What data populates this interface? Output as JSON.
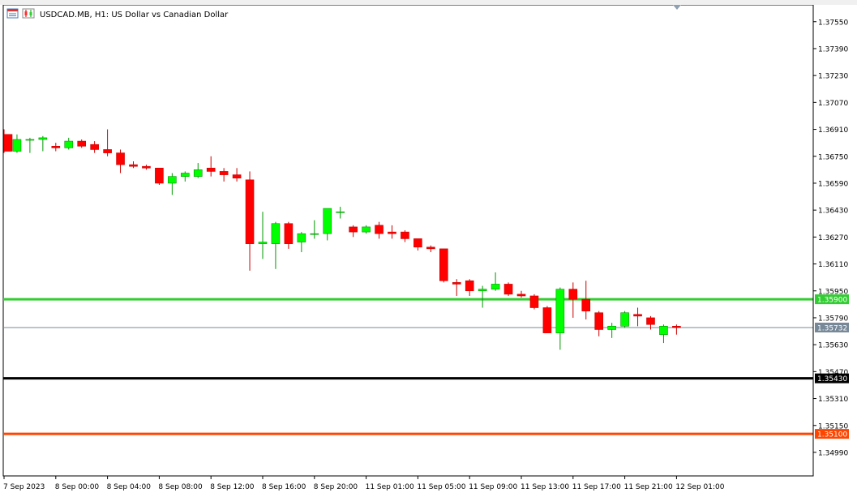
{
  "header": {
    "symbol": "USDCAD.MB",
    "timeframe": "H1",
    "description": "US Dollar vs Canadian Dollar",
    "title_text": "USDCAD.MB, H1:  US Dollar vs Canadian Dollar"
  },
  "colors": {
    "background": "#ffffff",
    "bull_fill": "#00ff00",
    "bear_fill": "#ff0000",
    "bull_wick": "#009900",
    "bear_wick": "#cc0000",
    "axis": "#000000",
    "support_green": "#32cd32",
    "support_black": "#000000",
    "support_orange": "#ff4500",
    "bid_line": "#778899"
  },
  "chart_data": {
    "type": "candlestick",
    "symbol": "USDCAD.MB",
    "timeframe": "H1",
    "ylim": [
      1.3485,
      1.3765
    ],
    "y_ticks": [
      "1.37550",
      "1.37390",
      "1.37230",
      "1.37070",
      "1.36910",
      "1.36750",
      "1.36590",
      "1.36430",
      "1.36270",
      "1.36110",
      "1.35950",
      "1.35790",
      "1.35630",
      "1.35470",
      "1.35310",
      "1.35150",
      "1.34990"
    ],
    "x_ticks": [
      {
        "index": 0,
        "label": "7 Sep 2023"
      },
      {
        "index": 4,
        "label": "8 Sep 00:00"
      },
      {
        "index": 8,
        "label": "8 Sep 04:00"
      },
      {
        "index": 12,
        "label": "8 Sep 08:00"
      },
      {
        "index": 16,
        "label": "8 Sep 12:00"
      },
      {
        "index": 20,
        "label": "8 Sep 16:00"
      },
      {
        "index": 24,
        "label": "8 Sep 20:00"
      },
      {
        "index": 28,
        "label": "11 Sep 01:00"
      },
      {
        "index": 32,
        "label": "11 Sep 05:00"
      },
      {
        "index": 36,
        "label": "11 Sep 09:00"
      },
      {
        "index": 40,
        "label": "11 Sep 13:00"
      },
      {
        "index": 44,
        "label": "11 Sep 17:00"
      },
      {
        "index": 48,
        "label": "11 Sep 21:00"
      },
      {
        "index": 52,
        "label": "12 Sep 01:00"
      }
    ],
    "horizontal_lines": [
      {
        "value": 1.359,
        "label": "1.35900",
        "color": "#32cd32",
        "width": 3
      },
      {
        "value": 1.35732,
        "label": "1.35732",
        "color": "#778899",
        "width": 1
      },
      {
        "value": 1.3543,
        "label": "1.35430",
        "color": "#000000",
        "width": 3
      },
      {
        "value": 1.351,
        "label": "1.35100",
        "color": "#ff4500",
        "width": 3
      }
    ],
    "candles": [
      {
        "o": 1.3688,
        "h": 1.3691,
        "l": 1.3677,
        "c": 1.3678
      },
      {
        "o": 1.3678,
        "h": 1.3688,
        "l": 1.3677,
        "c": 1.3685
      },
      {
        "o": 1.3685,
        "h": 1.3686,
        "l": 1.3677,
        "c": 1.3685
      },
      {
        "o": 1.3685,
        "h": 1.3687,
        "l": 1.3678,
        "c": 1.3686
      },
      {
        "o": 1.3681,
        "h": 1.3683,
        "l": 1.3678,
        "c": 1.368
      },
      {
        "o": 1.368,
        "h": 1.3686,
        "l": 1.3679,
        "c": 1.3684
      },
      {
        "o": 1.3684,
        "h": 1.3685,
        "l": 1.368,
        "c": 1.3681
      },
      {
        "o": 1.3682,
        "h": 1.3684,
        "l": 1.3677,
        "c": 1.3679
      },
      {
        "o": 1.3679,
        "h": 1.3691,
        "l": 1.3675,
        "c": 1.3677
      },
      {
        "o": 1.3677,
        "h": 1.3679,
        "l": 1.3665,
        "c": 1.367
      },
      {
        "o": 1.367,
        "h": 1.3672,
        "l": 1.3668,
        "c": 1.3669
      },
      {
        "o": 1.3669,
        "h": 1.367,
        "l": 1.3667,
        "c": 1.3668
      },
      {
        "o": 1.3668,
        "h": 1.3668,
        "l": 1.3658,
        "c": 1.3659
      },
      {
        "o": 1.3659,
        "h": 1.3665,
        "l": 1.3652,
        "c": 1.3663
      },
      {
        "o": 1.3663,
        "h": 1.3666,
        "l": 1.366,
        "c": 1.3665
      },
      {
        "o": 1.3663,
        "h": 1.3671,
        "l": 1.3662,
        "c": 1.3667
      },
      {
        "o": 1.3668,
        "h": 1.3675,
        "l": 1.3663,
        "c": 1.3666
      },
      {
        "o": 1.3666,
        "h": 1.3668,
        "l": 1.366,
        "c": 1.3664
      },
      {
        "o": 1.3664,
        "h": 1.3668,
        "l": 1.366,
        "c": 1.3662
      },
      {
        "o": 1.3661,
        "h": 1.3666,
        "l": 1.3607,
        "c": 1.3623
      },
      {
        "o": 1.3623,
        "h": 1.3642,
        "l": 1.3614,
        "c": 1.3624
      },
      {
        "o": 1.3623,
        "h": 1.3636,
        "l": 1.3608,
        "c": 1.3635
      },
      {
        "o": 1.3635,
        "h": 1.3636,
        "l": 1.362,
        "c": 1.3623
      },
      {
        "o": 1.3624,
        "h": 1.363,
        "l": 1.3618,
        "c": 1.3629
      },
      {
        "o": 1.3629,
        "h": 1.3637,
        "l": 1.3626,
        "c": 1.3629
      },
      {
        "o": 1.3629,
        "h": 1.3644,
        "l": 1.3625,
        "c": 1.3644
      },
      {
        "o": 1.3642,
        "h": 1.3645,
        "l": 1.3638,
        "c": 1.3642
      },
      {
        "o": 1.3633,
        "h": 1.3634,
        "l": 1.3627,
        "c": 1.363
      },
      {
        "o": 1.363,
        "h": 1.3634,
        "l": 1.3629,
        "c": 1.3633
      },
      {
        "o": 1.3634,
        "h": 1.3636,
        "l": 1.3626,
        "c": 1.3629
      },
      {
        "o": 1.363,
        "h": 1.3634,
        "l": 1.3626,
        "c": 1.3629
      },
      {
        "o": 1.363,
        "h": 1.3631,
        "l": 1.3624,
        "c": 1.3626
      },
      {
        "o": 1.3626,
        "h": 1.3626,
        "l": 1.3619,
        "c": 1.3621
      },
      {
        "o": 1.3621,
        "h": 1.3622,
        "l": 1.3618,
        "c": 1.362
      },
      {
        "o": 1.362,
        "h": 1.362,
        "l": 1.36,
        "c": 1.3601
      },
      {
        "o": 1.36,
        "h": 1.3602,
        "l": 1.3592,
        "c": 1.3599
      },
      {
        "o": 1.3601,
        "h": 1.3602,
        "l": 1.3592,
        "c": 1.3595
      },
      {
        "o": 1.3595,
        "h": 1.3598,
        "l": 1.3585,
        "c": 1.3596
      },
      {
        "o": 1.3596,
        "h": 1.3606,
        "l": 1.3595,
        "c": 1.3599
      },
      {
        "o": 1.3599,
        "h": 1.36,
        "l": 1.3592,
        "c": 1.3593
      },
      {
        "o": 1.3593,
        "h": 1.3595,
        "l": 1.3591,
        "c": 1.3592
      },
      {
        "o": 1.3592,
        "h": 1.3593,
        "l": 1.3584,
        "c": 1.3585
      },
      {
        "o": 1.3585,
        "h": 1.3586,
        "l": 1.357,
        "c": 1.357
      },
      {
        "o": 1.357,
        "h": 1.3597,
        "l": 1.356,
        "c": 1.3596
      },
      {
        "o": 1.3596,
        "h": 1.36,
        "l": 1.3579,
        "c": 1.359
      },
      {
        "o": 1.359,
        "h": 1.3601,
        "l": 1.3578,
        "c": 1.3583
      },
      {
        "o": 1.3582,
        "h": 1.3583,
        "l": 1.3568,
        "c": 1.3572
      },
      {
        "o": 1.3572,
        "h": 1.3576,
        "l": 1.3567,
        "c": 1.3574
      },
      {
        "o": 1.3574,
        "h": 1.3583,
        "l": 1.3573,
        "c": 1.3582
      },
      {
        "o": 1.3581,
        "h": 1.3585,
        "l": 1.3574,
        "c": 1.358
      },
      {
        "o": 1.3579,
        "h": 1.358,
        "l": 1.3572,
        "c": 1.3575
      },
      {
        "o": 1.3569,
        "h": 1.3575,
        "l": 1.3564,
        "c": 1.3574
      },
      {
        "o": 1.3574,
        "h": 1.3575,
        "l": 1.3569,
        "c": 1.35732
      }
    ]
  }
}
